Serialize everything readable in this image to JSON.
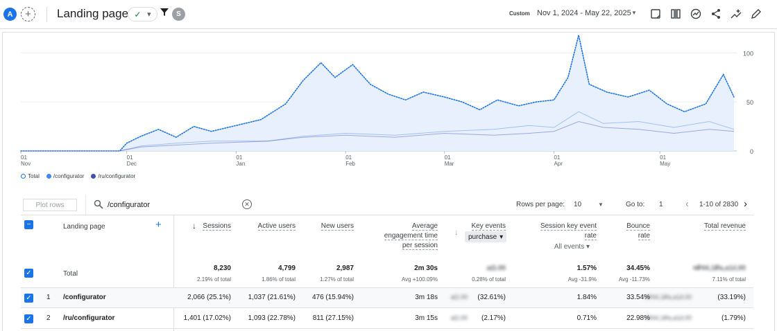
{
  "header": {
    "avatar_letter": "A",
    "add_icon": "plus-icon",
    "title": "Landing page",
    "status_icon": "check-circle-icon",
    "filter_icon": "filter-icon",
    "segment_letter": "S",
    "custom_label": "Custom",
    "date_range": "Nov 1, 2024 - May 22, 2025",
    "icons": [
      "insights-icon",
      "compare-icon",
      "trend-icon",
      "share-icon",
      "sparkle-icon",
      "edit-icon"
    ]
  },
  "chart_data": {
    "type": "line",
    "y_ticks": [
      "100",
      "50",
      "0"
    ],
    "ylim": [
      0,
      120
    ],
    "x_tick_labels": [
      {
        "day": "01",
        "month": "Nov"
      },
      {
        "day": "01",
        "month": "Dec"
      },
      {
        "day": "01",
        "month": "Jan"
      },
      {
        "day": "01",
        "month": "Feb"
      },
      {
        "day": "01",
        "month": "Mar"
      },
      {
        "day": "01",
        "month": "Apr"
      },
      {
        "day": "01",
        "month": "May"
      }
    ],
    "x_tick_dates": [
      "2024-11-01",
      "2024-12-01",
      "2025-01-01",
      "2025-02-01",
      "2025-03-01",
      "2025-04-01",
      "2025-05-01"
    ],
    "x_range": [
      "2024-11-01",
      "2025-05-22"
    ],
    "series": [
      {
        "name": "Total",
        "color": "#1a73e8",
        "style": "dotted-area",
        "points": [
          [
            "2024-11-01",
            0
          ],
          [
            "2024-11-15",
            0
          ],
          [
            "2024-11-29",
            0
          ],
          [
            "2024-12-01",
            8
          ],
          [
            "2024-12-05",
            15
          ],
          [
            "2024-12-10",
            22
          ],
          [
            "2024-12-15",
            14
          ],
          [
            "2024-12-20",
            25
          ],
          [
            "2024-12-25",
            20
          ],
          [
            "2025-01-01",
            26
          ],
          [
            "2025-01-08",
            32
          ],
          [
            "2025-01-15",
            48
          ],
          [
            "2025-01-20",
            72
          ],
          [
            "2025-01-25",
            90
          ],
          [
            "2025-01-29",
            75
          ],
          [
            "2025-02-03",
            88
          ],
          [
            "2025-02-08",
            68
          ],
          [
            "2025-02-13",
            58
          ],
          [
            "2025-02-18",
            52
          ],
          [
            "2025-02-23",
            60
          ],
          [
            "2025-03-01",
            55
          ],
          [
            "2025-03-06",
            50
          ],
          [
            "2025-03-11",
            42
          ],
          [
            "2025-03-16",
            52
          ],
          [
            "2025-03-22",
            46
          ],
          [
            "2025-03-27",
            50
          ],
          [
            "2025-04-01",
            52
          ],
          [
            "2025-04-05",
            75
          ],
          [
            "2025-04-08",
            118
          ],
          [
            "2025-04-11",
            68
          ],
          [
            "2025-04-16",
            60
          ],
          [
            "2025-04-22",
            55
          ],
          [
            "2025-04-28",
            62
          ],
          [
            "2025-05-03",
            48
          ],
          [
            "2025-05-08",
            40
          ],
          [
            "2025-05-14",
            48
          ],
          [
            "2025-05-19",
            78
          ],
          [
            "2025-05-22",
            55
          ]
        ]
      },
      {
        "name": "/configurator",
        "color": "#4285f4",
        "style": "line",
        "points": [
          [
            "2024-11-01",
            0
          ],
          [
            "2024-11-29",
            0
          ],
          [
            "2024-12-05",
            5
          ],
          [
            "2024-12-15",
            8
          ],
          [
            "2024-12-25",
            10
          ],
          [
            "2025-01-10",
            10
          ],
          [
            "2025-01-20",
            15
          ],
          [
            "2025-02-01",
            18
          ],
          [
            "2025-02-15",
            16
          ],
          [
            "2025-03-01",
            20
          ],
          [
            "2025-03-15",
            22
          ],
          [
            "2025-03-25",
            26
          ],
          [
            "2025-04-01",
            24
          ],
          [
            "2025-04-08",
            40
          ],
          [
            "2025-04-15",
            28
          ],
          [
            "2025-04-25",
            30
          ],
          [
            "2025-05-05",
            24
          ],
          [
            "2025-05-15",
            30
          ],
          [
            "2025-05-22",
            22
          ]
        ]
      },
      {
        "name": "/ru/configurator",
        "color": "#3f51b5",
        "style": "line",
        "points": [
          [
            "2024-11-01",
            0
          ],
          [
            "2024-11-29",
            0
          ],
          [
            "2024-12-05",
            4
          ],
          [
            "2024-12-15",
            6
          ],
          [
            "2024-12-25",
            8
          ],
          [
            "2025-01-10",
            10
          ],
          [
            "2025-01-20",
            14
          ],
          [
            "2025-02-01",
            16
          ],
          [
            "2025-02-15",
            14
          ],
          [
            "2025-03-01",
            18
          ],
          [
            "2025-03-15",
            16
          ],
          [
            "2025-03-25",
            18
          ],
          [
            "2025-04-01",
            20
          ],
          [
            "2025-04-08",
            30
          ],
          [
            "2025-04-15",
            24
          ],
          [
            "2025-04-25",
            22
          ],
          [
            "2025-05-05",
            18
          ],
          [
            "2025-05-15",
            22
          ],
          [
            "2025-05-22",
            20
          ]
        ]
      }
    ]
  },
  "legend": {
    "items": [
      {
        "label": "Total",
        "color": "#1a73e8",
        "hollow": true
      },
      {
        "label": "/configurator",
        "color": "#4285f4",
        "hollow": false
      },
      {
        "label": "/ru/configurator",
        "color": "#3f51b5",
        "hollow": false
      }
    ]
  },
  "table_toolbar": {
    "plot_rows": "Plot rows",
    "search_value": "/configurator",
    "rows_per_page_label": "Rows per page:",
    "rows_per_page_value": "10",
    "go_to_label": "Go to:",
    "go_to_value": "1",
    "page_info": "1-10 of 2830"
  },
  "table": {
    "dimension_header": "Landing page",
    "columns": [
      {
        "label": "Sessions",
        "sort": "desc"
      },
      {
        "label": "Active users"
      },
      {
        "label": "New users"
      },
      {
        "label_lines": [
          "Average",
          "engagement time",
          "per session"
        ]
      },
      {
        "label": "Key events",
        "sub": "purchase",
        "sort_icon": true
      },
      {
        "label_lines": [
          "Session key event",
          "rate"
        ],
        "sub": "All events"
      },
      {
        "label_lines": [
          "Bounce",
          "rate"
        ]
      },
      {
        "label": "Total revenue"
      }
    ],
    "total": {
      "label": "Total",
      "values": [
        "8,230",
        "4,799",
        "2,987",
        "2m 30s",
        "aΩ.00",
        "1.57%",
        "34.45%",
        "¤₽44,1₽a,a1∂,00"
      ],
      "subs": [
        "2.19% of total",
        "1.86% of total",
        "1.27% of total",
        "Avg +100.09%",
        "0.28% of total",
        "Avg -31.9%",
        "Avg -11.73%",
        "7.11% of total"
      ],
      "blurred": [
        4,
        7
      ]
    },
    "rows": [
      {
        "index": "1",
        "label": "/configurator",
        "values": [
          "2,066 (25.1%)",
          "1,037 (21.61%)",
          "476 (15.94%)",
          "3m 18s",
          "(32.61%)",
          "1.84%",
          "33.54%",
          "(33.19%)"
        ],
        "blur_prefix": {
          "4": "aΩ.00",
          "7": "¤₽44,1₽a,a1∂,00"
        }
      },
      {
        "index": "2",
        "label": "/ru/configurator",
        "values": [
          "1,401 (17.02%)",
          "1,093 (22.78%)",
          "811 (27.15%)",
          "3m 15s",
          "(2.17%)",
          "0.71%",
          "22.98%",
          "(1.79%)"
        ],
        "blur_prefix": {
          "4": "aΩ.00",
          "7": "¤₽44,1₽a,a1∂,00"
        }
      }
    ]
  }
}
